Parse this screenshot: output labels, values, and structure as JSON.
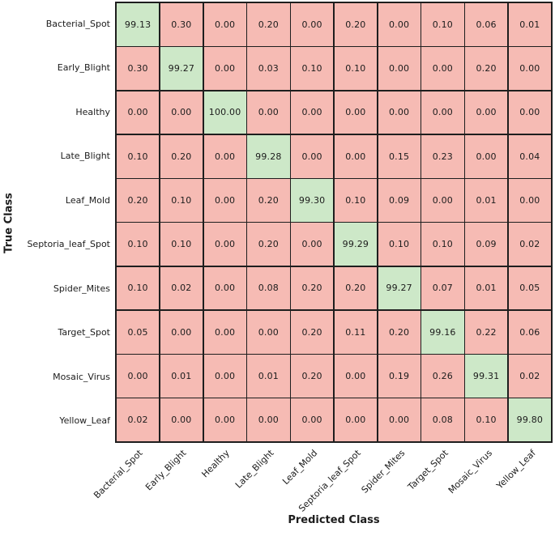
{
  "figure": {
    "ylabel": "True Class",
    "xlabel": "Predicted Class"
  },
  "colors": {
    "diagonal_cell": "#cde8c8",
    "off_diagonal_cell": "#f6bbb4",
    "grid_line": "#1e1e1e",
    "text": "#1c1c1c"
  },
  "chart_data": {
    "type": "heatmap",
    "title": "",
    "xlabel": "Predicted Class",
    "ylabel": "True Class",
    "legend": "none",
    "grid": "on",
    "categories": [
      "Bacterial_Spot",
      "Early_Blight",
      "Healthy",
      "Late_Blight",
      "Leaf_Mold",
      "Septoria_leaf_Spot",
      "Spider_Mites",
      "Target_Spot",
      "Mosaic_Virus",
      "Yellow_Leaf"
    ],
    "matrix": [
      [
        99.13,
        0.3,
        0.0,
        0.2,
        0.0,
        0.2,
        0.0,
        0.1,
        0.06,
        0.01
      ],
      [
        0.3,
        99.27,
        0.0,
        0.03,
        0.1,
        0.1,
        0.0,
        0.0,
        0.2,
        0.0
      ],
      [
        0.0,
        0.0,
        100.0,
        0.0,
        0.0,
        0.0,
        0.0,
        0.0,
        0.0,
        0.0
      ],
      [
        0.1,
        0.2,
        0.0,
        99.28,
        0.0,
        0.0,
        0.15,
        0.23,
        0.0,
        0.04
      ],
      [
        0.2,
        0.1,
        0.0,
        0.2,
        99.3,
        0.1,
        0.09,
        0.0,
        0.01,
        0.0
      ],
      [
        0.1,
        0.1,
        0.0,
        0.2,
        0.0,
        99.29,
        0.1,
        0.1,
        0.09,
        0.02
      ],
      [
        0.1,
        0.02,
        0.0,
        0.08,
        0.2,
        0.2,
        99.27,
        0.07,
        0.01,
        0.05
      ],
      [
        0.05,
        0.0,
        0.0,
        0.0,
        0.2,
        0.11,
        0.2,
        99.16,
        0.22,
        0.06
      ],
      [
        0.0,
        0.01,
        0.0,
        0.01,
        0.2,
        0.0,
        0.19,
        0.26,
        99.31,
        0.02
      ],
      [
        0.02,
        0.0,
        0.0,
        0.0,
        0.0,
        0.0,
        0.0,
        0.08,
        0.1,
        99.8
      ]
    ],
    "value_decimals": 2,
    "diagonal_highlighted": true
  }
}
